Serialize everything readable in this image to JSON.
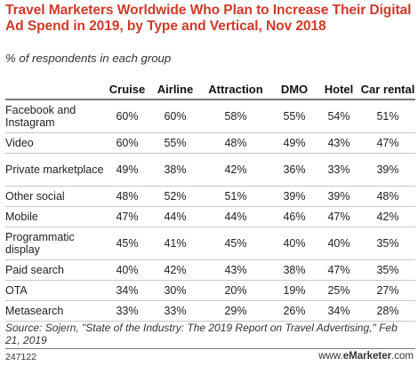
{
  "chart_data": {
    "type": "table",
    "title": "Travel Marketers Worldwide Who Plan to Increase Their Digital Ad Spend in 2019, by Type and Vertical, Nov 2018",
    "subtitle": "% of respondents in each group",
    "columns": [
      "Cruise",
      "Airline",
      "Attraction",
      "DMO",
      "Hotel",
      "Car rental"
    ],
    "rows": [
      {
        "label": "Facebook and Instagram",
        "values": [
          "60%",
          "60%",
          "58%",
          "55%",
          "54%",
          "51%"
        ]
      },
      {
        "label": "Video",
        "values": [
          "60%",
          "55%",
          "48%",
          "49%",
          "43%",
          "47%"
        ]
      },
      {
        "label": "Private marketplace",
        "values": [
          "49%",
          "38%",
          "42%",
          "36%",
          "33%",
          "39%"
        ]
      },
      {
        "label": "Other social",
        "values": [
          "48%",
          "52%",
          "51%",
          "39%",
          "39%",
          "48%"
        ]
      },
      {
        "label": "Mobile",
        "values": [
          "47%",
          "44%",
          "44%",
          "46%",
          "47%",
          "42%"
        ]
      },
      {
        "label": "Programmatic display",
        "values": [
          "45%",
          "41%",
          "45%",
          "40%",
          "40%",
          "35%"
        ]
      },
      {
        "label": "Paid search",
        "values": [
          "40%",
          "42%",
          "43%",
          "38%",
          "47%",
          "35%"
        ]
      },
      {
        "label": "OTA",
        "values": [
          "34%",
          "30%",
          "20%",
          "19%",
          "25%",
          "27%"
        ]
      },
      {
        "label": "Metasearch",
        "values": [
          "33%",
          "33%",
          "29%",
          "26%",
          "34%",
          "28%"
        ]
      }
    ],
    "source": "Source: Sojern, \"State of the Industry: The 2019 Report on Travel Advertising,\" Feb 21, 2019",
    "chart_id": "247122",
    "brand": {
      "prefix": "www.",
      "name": "eMarketer",
      "suffix": ".com"
    },
    "title_color": "#cf3a2b"
  }
}
